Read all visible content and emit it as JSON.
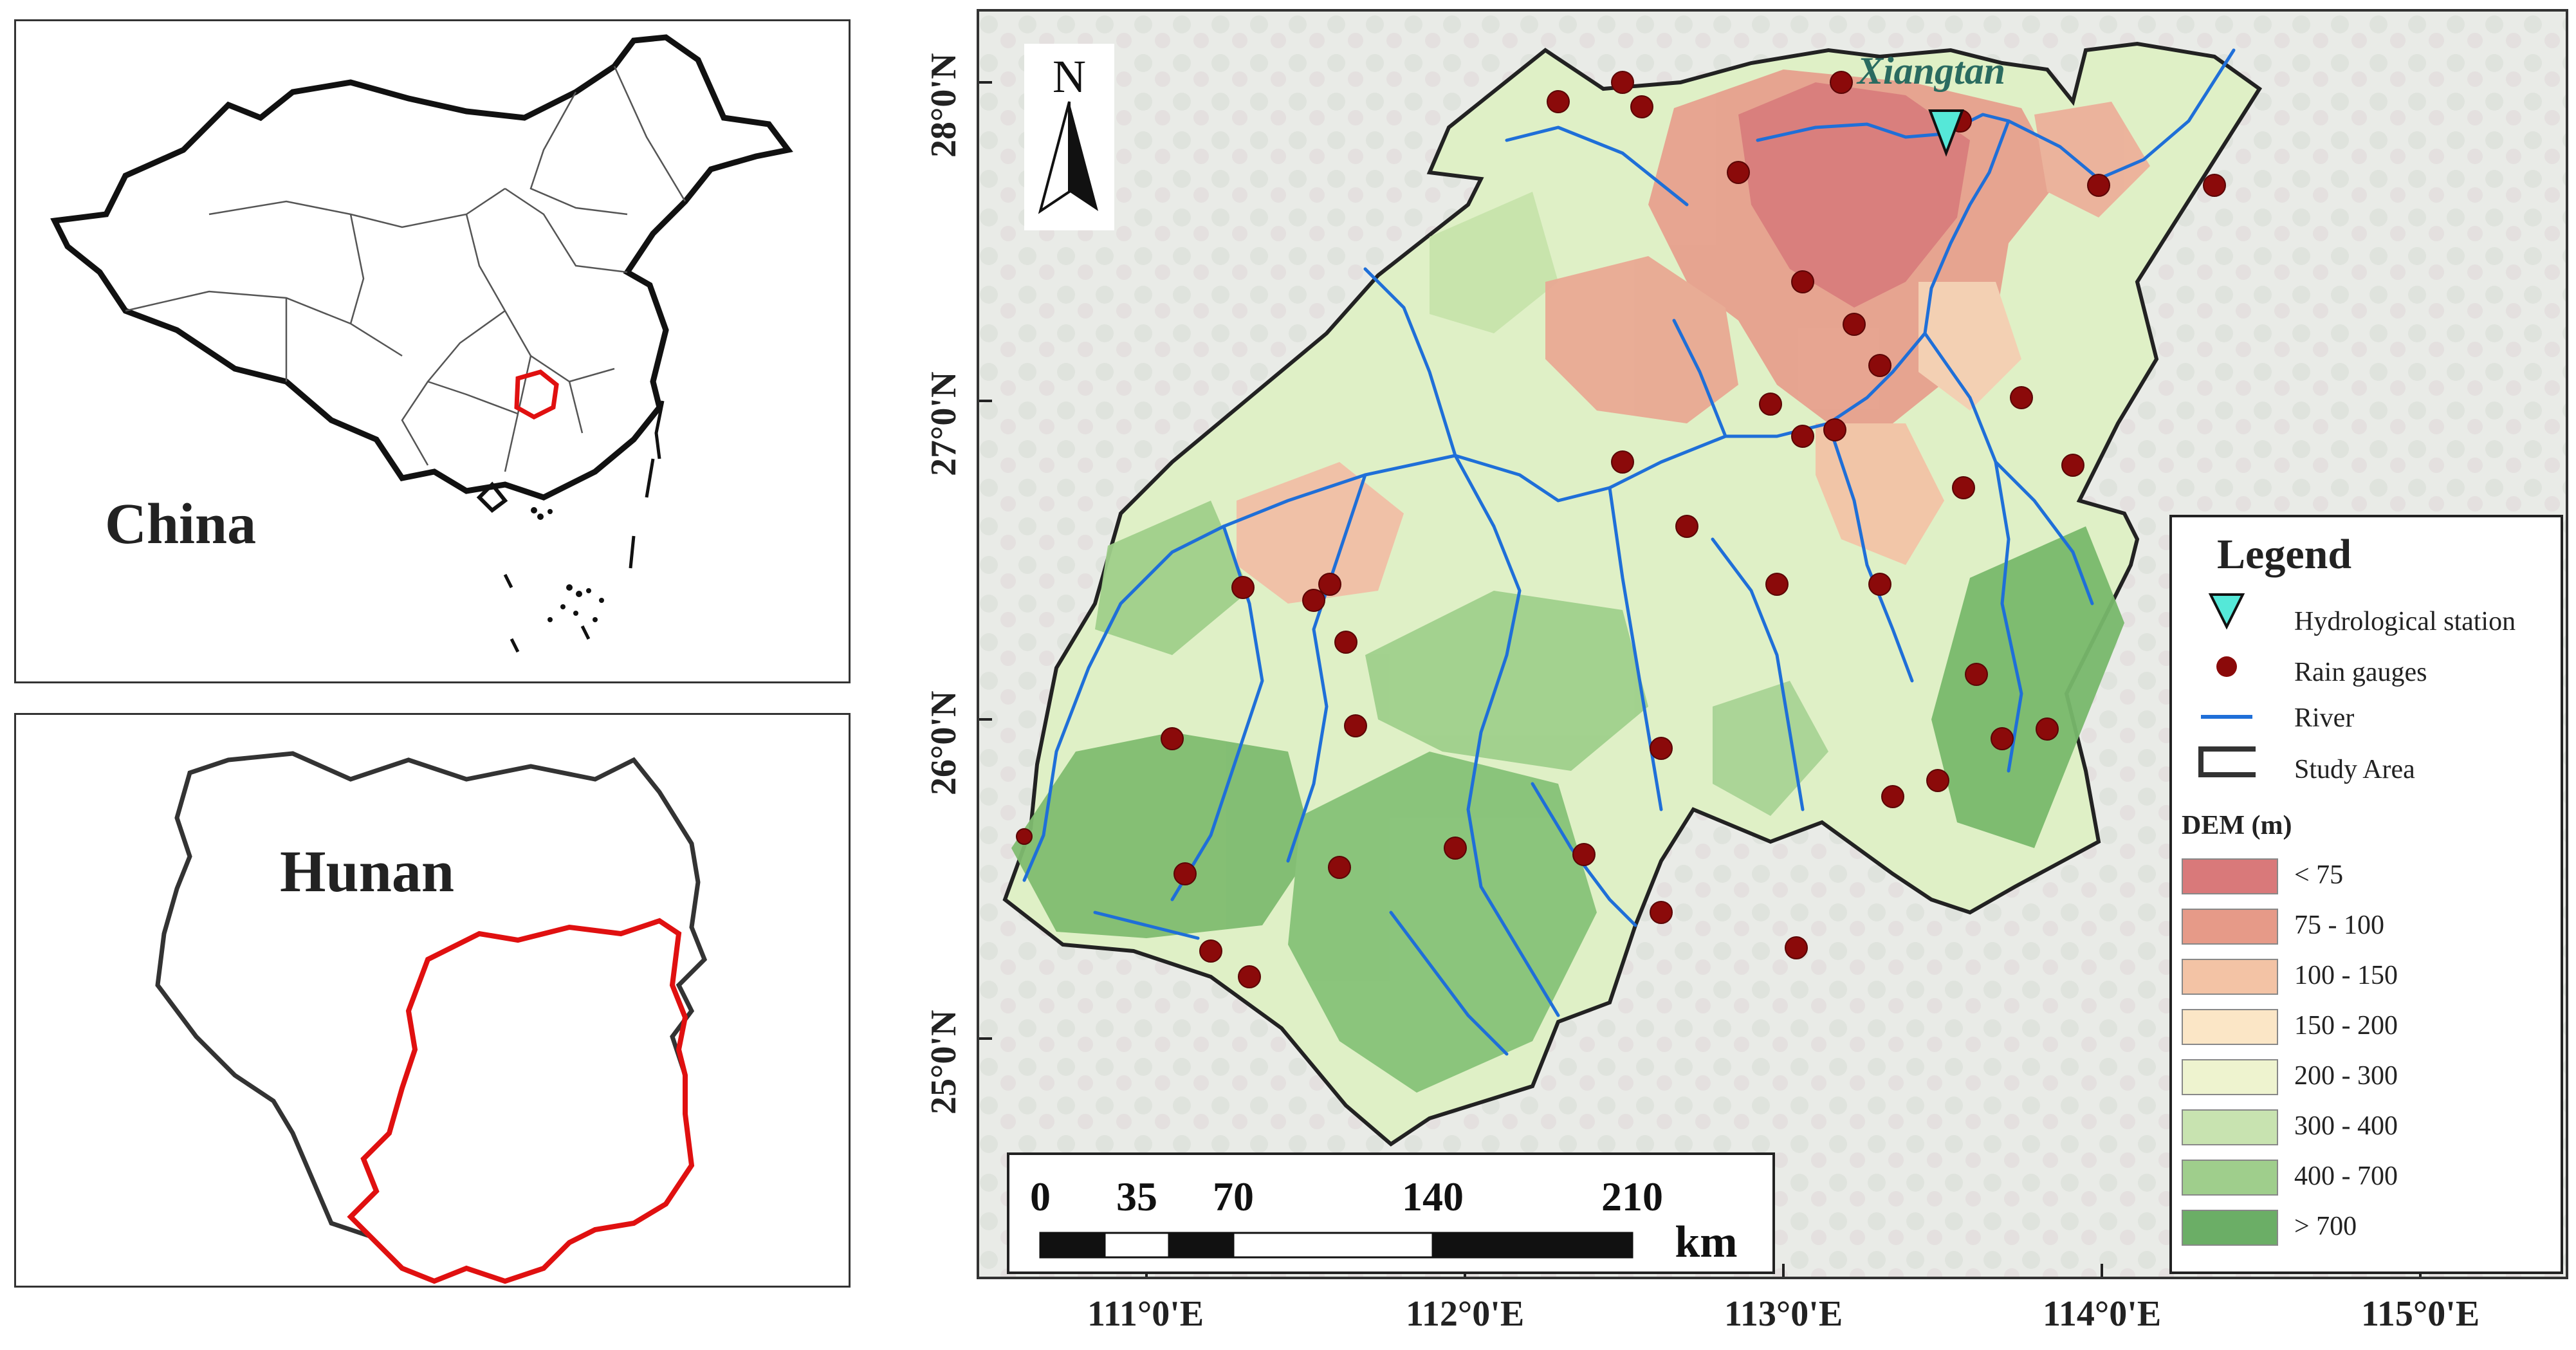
{
  "china_panel": {
    "label": "China"
  },
  "hunan_panel": {
    "label": "Hunan"
  },
  "map": {
    "north_label": "N",
    "station_name": "Xiangtan",
    "lat_labels": [
      "28°0'N",
      "27°0'N",
      "26°0'N",
      "25°0'N"
    ],
    "lon_labels": [
      "111°0'E",
      "112°0'E",
      "113°0'E",
      "114°0'E",
      "115°0'E"
    ],
    "scale_labels": [
      "0",
      "35",
      "70",
      "140",
      "210"
    ],
    "scale_unit": "km",
    "colors": {
      "river": "#1f6fd8",
      "gauge": "#8b0a0a",
      "station": "#55e8d8",
      "study_area": "#333333"
    }
  },
  "legend": {
    "title": "Legend",
    "items": [
      {
        "label": "Hydrological station",
        "icon": "triangle-icon"
      },
      {
        "label": "Rain gauges",
        "icon": "dot-icon"
      },
      {
        "label": "River",
        "icon": "line-icon"
      },
      {
        "label": "Study Area",
        "icon": "box-icon"
      }
    ],
    "dem_title": "DEM (m)",
    "dem_classes": [
      {
        "label": "< 75",
        "color": "#d9797a"
      },
      {
        "label": "75 - 100",
        "color": "#e69a88"
      },
      {
        "label": "100 - 150",
        "color": "#f3c3a5"
      },
      {
        "label": "150 - 200",
        "color": "#fbe6c6"
      },
      {
        "label": "200 - 300",
        "color": "#eef3cf"
      },
      {
        "label": "300 - 400",
        "color": "#c8e3b0"
      },
      {
        "label": "400 - 700",
        "color": "#9fce8c"
      },
      {
        "label": "> 700",
        "color": "#6bae66"
      }
    ]
  }
}
